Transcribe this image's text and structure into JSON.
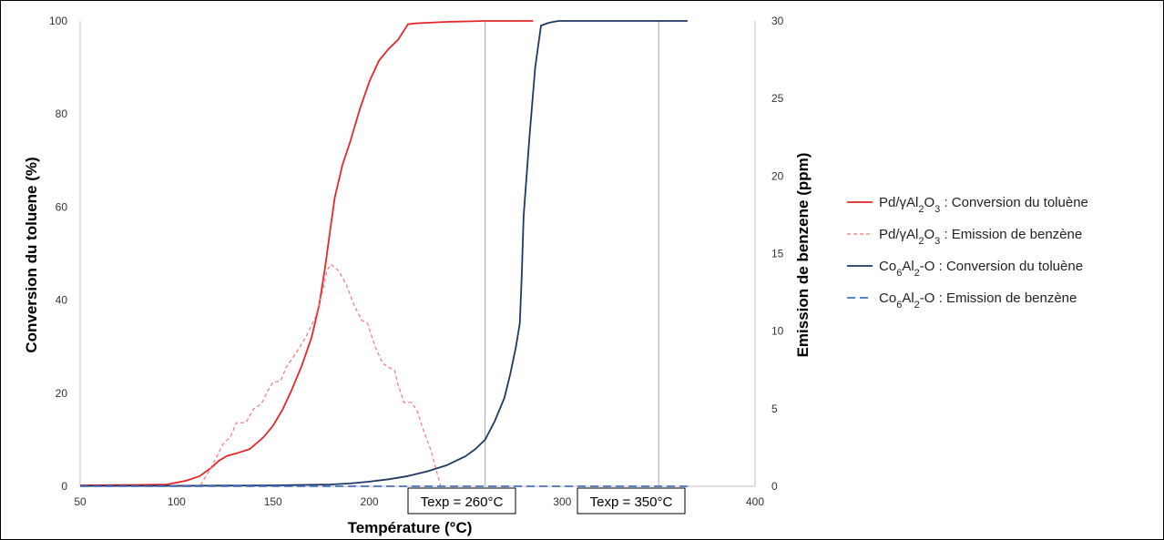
{
  "chart_data": {
    "type": "line",
    "x_axis": {
      "label": "Température (°C)",
      "range": [
        50,
        400
      ],
      "ticks": [
        50,
        100,
        150,
        200,
        250,
        300,
        350,
        400
      ]
    },
    "y_left": {
      "label": "Conversion du toluene (%)",
      "range": [
        0,
        100
      ],
      "ticks": [
        0,
        20,
        40,
        60,
        80,
        100
      ]
    },
    "y_right": {
      "label": "Emission de benzene (ppm)",
      "range": [
        0,
        30
      ],
      "ticks": [
        0,
        5,
        10,
        15,
        20,
        25,
        30
      ]
    },
    "grid": false,
    "legend_position": "right",
    "colors": {
      "pd": "#e8262a",
      "pd_emission": "#f2787a",
      "co": "#1f3864",
      "co_emission": "#4472c4",
      "ref_line": "#a6a6a6"
    },
    "series": [
      {
        "key": "pd_conv",
        "legend": {
          "prefix": "Pd/γAl",
          "sub1": "2",
          "mid": "O",
          "sub2": "3",
          "suffix": " : Conversion du toluène"
        },
        "axis": "left",
        "dash": "solid",
        "color": "#e8262a",
        "points": [
          [
            50,
            0.2
          ],
          [
            80,
            0.3
          ],
          [
            95,
            0.4
          ],
          [
            105,
            1.2
          ],
          [
            112,
            2.2
          ],
          [
            118,
            4.0
          ],
          [
            122,
            5.5
          ],
          [
            126,
            6.5
          ],
          [
            132,
            7.2
          ],
          [
            138,
            8.0
          ],
          [
            145,
            10.5
          ],
          [
            150,
            13
          ],
          [
            155,
            16.5
          ],
          [
            160,
            21
          ],
          [
            165,
            26
          ],
          [
            170,
            32
          ],
          [
            174,
            39
          ],
          [
            177,
            47
          ],
          [
            180,
            56
          ],
          [
            182,
            62
          ],
          [
            186,
            69
          ],
          [
            190,
            74
          ],
          [
            195,
            81
          ],
          [
            200,
            87
          ],
          [
            205,
            91.5
          ],
          [
            210,
            94
          ],
          [
            215,
            96
          ],
          [
            218,
            98
          ],
          [
            220,
            99.3
          ],
          [
            224,
            99.5
          ],
          [
            230,
            99.6
          ],
          [
            240,
            99.8
          ],
          [
            250,
            99.9
          ],
          [
            260,
            100
          ],
          [
            285,
            100
          ]
        ]
      },
      {
        "key": "pd_emis",
        "legend": {
          "prefix": "Pd/γAl",
          "sub1": "2",
          "mid": "O",
          "sub2": "3",
          "suffix": " : Emission de benzène"
        },
        "axis": "right",
        "dash": "dashed",
        "color": "#f2787a",
        "points": [
          [
            50,
            0
          ],
          [
            112,
            0
          ],
          [
            116,
            0.8
          ],
          [
            120,
            1.7
          ],
          [
            124,
            2.7
          ],
          [
            128,
            3.2
          ],
          [
            131,
            4.1
          ],
          [
            136,
            4.1
          ],
          [
            140,
            5.0
          ],
          [
            144,
            5.3
          ],
          [
            147,
            6.1
          ],
          [
            150,
            6.7
          ],
          [
            154,
            6.8
          ],
          [
            157,
            7.7
          ],
          [
            162,
            8.6
          ],
          [
            167,
            9.6
          ],
          [
            172,
            10.9
          ],
          [
            176,
            12.7
          ],
          [
            178,
            13.9
          ],
          [
            180,
            14.3
          ],
          [
            184,
            13.9
          ],
          [
            188,
            13.0
          ],
          [
            192,
            11.7
          ],
          [
            196,
            10.7
          ],
          [
            199,
            10.5
          ],
          [
            203,
            9.0
          ],
          [
            207,
            7.9
          ],
          [
            211,
            7.6
          ],
          [
            213,
            7.5
          ],
          [
            215,
            6.5
          ],
          [
            218,
            5.4
          ],
          [
            222,
            5.4
          ],
          [
            225,
            4.8
          ],
          [
            228,
            3.6
          ],
          [
            232,
            2.3
          ],
          [
            235,
            0.9
          ],
          [
            237,
            0
          ]
        ]
      },
      {
        "key": "co_conv",
        "legend": {
          "prefix": "Co",
          "sub1": "6",
          "mid": "Al",
          "sub2": "2",
          "suffix": "-O : Conversion du toluène"
        },
        "axis": "left",
        "dash": "solid",
        "color": "#1f3864",
        "points": [
          [
            50,
            0.1
          ],
          [
            100,
            0.1
          ],
          [
            150,
            0.2
          ],
          [
            180,
            0.4
          ],
          [
            190,
            0.6
          ],
          [
            200,
            1.0
          ],
          [
            210,
            1.5
          ],
          [
            220,
            2.2
          ],
          [
            230,
            3.2
          ],
          [
            240,
            4.5
          ],
          [
            250,
            6.5
          ],
          [
            255,
            8.0
          ],
          [
            260,
            10
          ],
          [
            265,
            14
          ],
          [
            270,
            19
          ],
          [
            273,
            24
          ],
          [
            276,
            30
          ],
          [
            278,
            35
          ],
          [
            279,
            45
          ],
          [
            280,
            58
          ],
          [
            283,
            75
          ],
          [
            286,
            90
          ],
          [
            289,
            99
          ],
          [
            293,
            99.6
          ],
          [
            298,
            100
          ],
          [
            310,
            100
          ],
          [
            350,
            100
          ],
          [
            365,
            100
          ]
        ]
      },
      {
        "key": "co_emis",
        "legend": {
          "prefix": "Co",
          "sub1": "6",
          "mid": "Al",
          "sub2": "2",
          "suffix": "-O : Emission de benzène"
        },
        "axis": "right",
        "dash": "long-dash",
        "color": "#4472c4",
        "points": [
          [
            50,
            0
          ],
          [
            365,
            0
          ]
        ]
      }
    ],
    "reference_lines": [
      {
        "x": 260,
        "label": "Texp = 260°C"
      },
      {
        "x": 350,
        "label": "Texp = 350°C"
      }
    ]
  }
}
